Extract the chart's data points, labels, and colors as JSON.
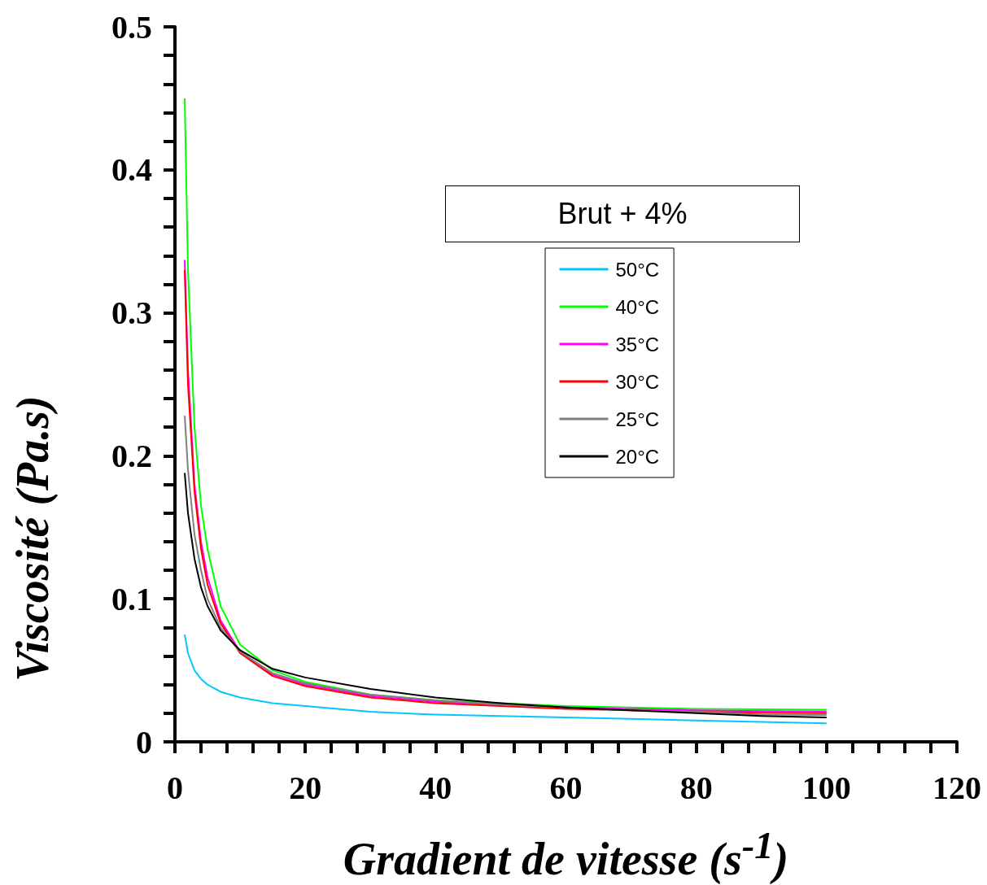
{
  "chart_data": {
    "type": "line",
    "xlabel": "Gradient de vitesse (s$^{-1}$)",
    "ylabel": "Viscosité (Pa.s)",
    "legend_title": "Brut + 4%",
    "x": [
      1.5,
      2,
      3,
      4,
      5,
      7,
      10,
      15,
      20,
      30,
      40,
      50,
      60,
      70,
      80,
      90,
      100
    ],
    "series": [
      {
        "name": "50°C",
        "color": "#00c8ff",
        "values": [
          0.075,
          0.062,
          0.05,
          0.044,
          0.04,
          0.035,
          0.031,
          0.027,
          0.025,
          0.021,
          0.019,
          0.018,
          0.017,
          0.016,
          0.015,
          0.014,
          0.013
        ]
      },
      {
        "name": "40°C",
        "color": "#00ff00",
        "values": [
          0.45,
          0.33,
          0.22,
          0.165,
          0.135,
          0.095,
          0.068,
          0.05,
          0.042,
          0.033,
          0.029,
          0.027,
          0.025,
          0.024,
          0.023,
          0.0228,
          0.0225
        ]
      },
      {
        "name": "35°C",
        "color": "#ff00ff",
        "values": [
          0.337,
          0.26,
          0.18,
          0.14,
          0.115,
          0.085,
          0.063,
          0.047,
          0.04,
          0.032,
          0.028,
          0.026,
          0.024,
          0.023,
          0.022,
          0.0215,
          0.0212
        ]
      },
      {
        "name": "30°C",
        "color": "#ff0000",
        "values": [
          0.33,
          0.25,
          0.175,
          0.135,
          0.11,
          0.083,
          0.062,
          0.046,
          0.039,
          0.031,
          0.027,
          0.025,
          0.023,
          0.022,
          0.021,
          0.0203,
          0.02
        ]
      },
      {
        "name": "25°C",
        "color": "#808080",
        "values": [
          0.228,
          0.19,
          0.145,
          0.12,
          0.1,
          0.08,
          0.063,
          0.048,
          0.041,
          0.033,
          0.029,
          0.026,
          0.024,
          0.022,
          0.021,
          0.019,
          0.0188
        ]
      },
      {
        "name": "20°C",
        "color": "#000000",
        "values": [
          0.188,
          0.16,
          0.128,
          0.108,
          0.095,
          0.078,
          0.064,
          0.051,
          0.045,
          0.037,
          0.031,
          0.027,
          0.024,
          0.022,
          0.02,
          0.018,
          0.017
        ]
      }
    ],
    "xlim": [
      0,
      120
    ],
    "xticks": [
      0,
      20,
      40,
      60,
      80,
      100,
      120
    ],
    "ylim": [
      0,
      0.5
    ],
    "yticks": [
      0,
      0.1,
      0.2,
      0.3,
      0.4,
      0.5
    ],
    "grid": false,
    "legend": "right",
    "marker": "none",
    "line_style": "solid"
  }
}
